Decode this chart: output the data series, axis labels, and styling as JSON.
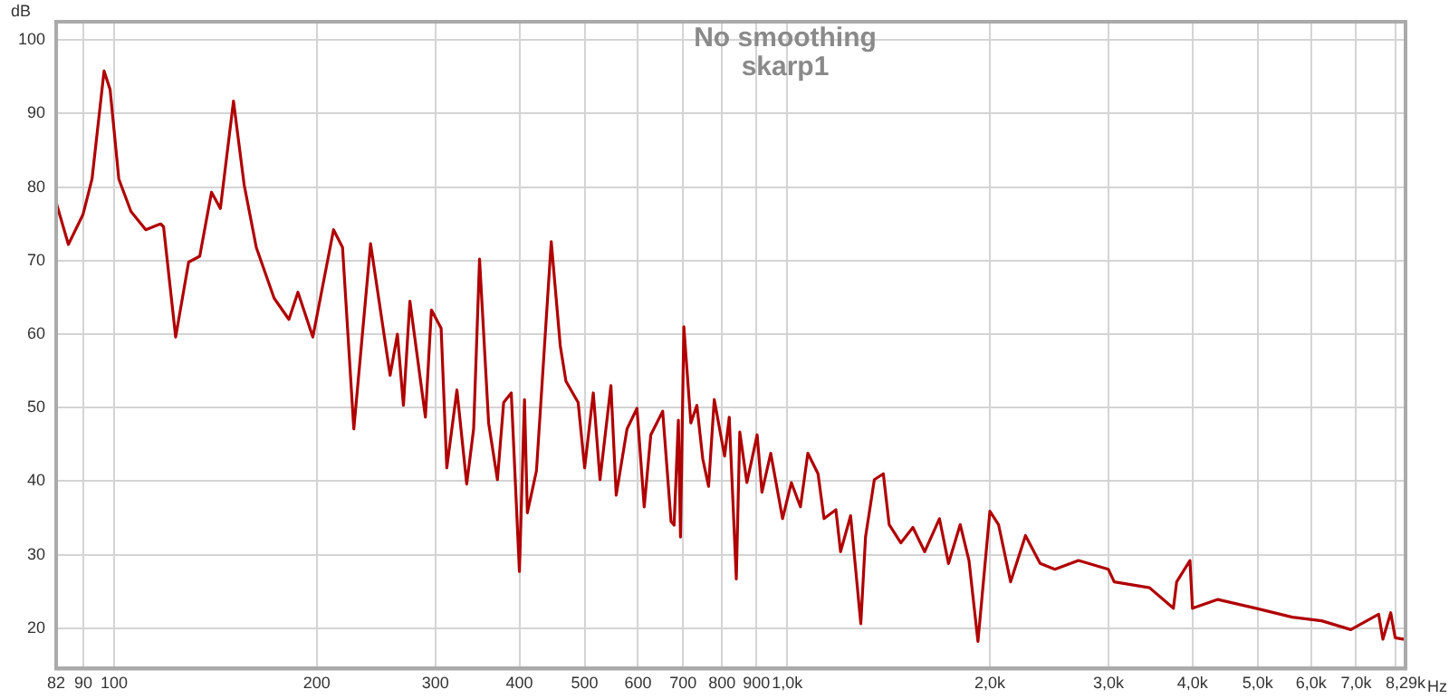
{
  "chart_data": {
    "type": "line",
    "title": "No smoothing",
    "subtitle": "skarp1",
    "xlabel": "Hz",
    "ylabel": "dB",
    "log": "x",
    "grid": true,
    "legend": false,
    "marker": "none",
    "line_style": "solid",
    "xlim": [
      82,
      8290
    ],
    "ylim": [
      14.5,
      102.5
    ],
    "xticks": [
      82,
      90,
      100,
      200,
      300,
      400,
      500,
      600,
      700,
      800,
      900,
      {
        "value": 1000,
        "label": "1,0k"
      },
      {
        "value": 2000,
        "label": "2,0k"
      },
      {
        "value": 3000,
        "label": "3,0k"
      },
      {
        "value": 4000,
        "label": "4,0k"
      },
      {
        "value": 5000,
        "label": "5,0k"
      },
      {
        "value": 6000,
        "label": "6,0k"
      },
      {
        "value": 7000,
        "label": "7,0k"
      },
      {
        "value": 8000,
        "label": null
      },
      {
        "value": 8290,
        "label": "8,29k"
      }
    ],
    "yticks": [
      20,
      30,
      40,
      50,
      60,
      70,
      80,
      90,
      100
    ],
    "series": [
      {
        "color": "#b00000",
        "x": [
          82,
          85.5,
          89.9,
          92.7,
          96.6,
          98.6,
          101.6,
          105.9,
          111.4,
          117.2,
          118.4,
          123.4,
          129,
          134,
          139.5,
          143.8,
          150.4,
          156,
          162.6,
          172.8,
          181.8,
          187.5,
          197.3,
          211.8,
          218.4,
          227,
          240.4,
          257,
          263.5,
          269,
          275,
          290,
          296,
          306,
          312,
          323,
          334,
          342,
          349,
          360,
          371,
          379,
          389,
          400,
          407,
          411,
          424,
          446,
          460,
          469,
          489,
          500,
          515,
          527,
          547,
          557,
          578,
          598,
          613,
          627,
          653,
          672,
          679,
          689,
          694,
          702,
          719,
          734,
          749,
          764,
          779,
          807,
          820,
          840,
          850,
          871,
          902,
          917,
          945,
          984,
          1014,
          1046,
          1073,
          1111,
          1134,
          1181,
          1200,
          1242,
          1286,
          1307,
          1347,
          1389,
          1417,
          1475,
          1537,
          1600,
          1683,
          1736,
          1807,
          1862,
          1920,
          2000,
          2060,
          2147,
          2259,
          2375,
          2498,
          2708,
          3000,
          3060,
          3454,
          3747,
          3789,
          3965,
          4000,
          4363,
          4972,
          5627,
          6221,
          6876,
          7561,
          7672,
          7881,
          8001,
          8218,
          8290
        ],
        "values": [
          77.9,
          72.2,
          76.3,
          81.1,
          95.8,
          93.3,
          81.1,
          76.7,
          74.2,
          75.0,
          74.6,
          59.6,
          69.8,
          70.6,
          79.3,
          77.1,
          91.7,
          80.3,
          71.8,
          64.9,
          62.0,
          65.7,
          59.6,
          74.2,
          71.8,
          47.1,
          72.3,
          54.4,
          60,
          50.3,
          64.5,
          48.7,
          63.3,
          60.8,
          41.8,
          52.4,
          39.6,
          47.1,
          70.2,
          47.9,
          40.2,
          50.7,
          52,
          27.7,
          51.1,
          35.7,
          41.4,
          72.6,
          58.4,
          53.6,
          50.7,
          41.8,
          52,
          40.2,
          53,
          38.1,
          47.1,
          49.9,
          36.5,
          46.3,
          49.5,
          34.5,
          34,
          48.3,
          32.4,
          61,
          47.9,
          50.3,
          43,
          39.3,
          51.1,
          43.4,
          48.7,
          26.7,
          46.7,
          39.8,
          46.3,
          38.5,
          43.8,
          34.9,
          39.8,
          36.5,
          43.8,
          41,
          34.9,
          36.1,
          30.4,
          35.3,
          20.6,
          32.4,
          40.2,
          41,
          34.1,
          31.6,
          33.7,
          30.4,
          34.9,
          28.8,
          34.1,
          29.2,
          18.2,
          35.9,
          34.1,
          26.3,
          32.6,
          28.8,
          28,
          29.2,
          28,
          26.3,
          25.5,
          22.7,
          26.3,
          29.2,
          22.7,
          23.9,
          22.7,
          21.5,
          21,
          19.8,
          21.9,
          18.5,
          22.1,
          18.7,
          18.5,
          18.5
        ]
      }
    ]
  }
}
